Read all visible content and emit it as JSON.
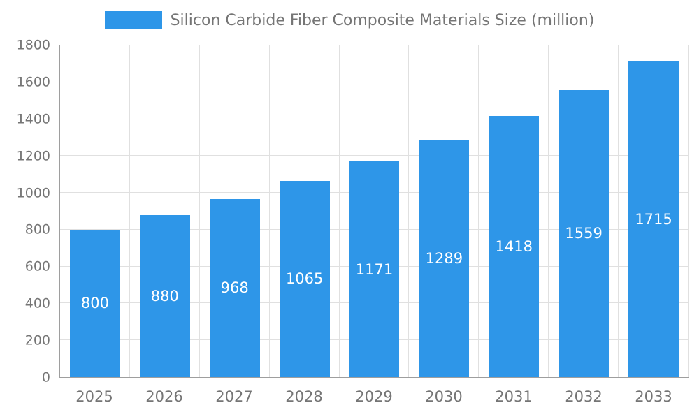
{
  "chart_data": {
    "type": "bar",
    "title": "Silicon Carbide Fiber Composite Materials Size (million)",
    "categories": [
      "2025",
      "2026",
      "2027",
      "2028",
      "2029",
      "2030",
      "2031",
      "2032",
      "2033"
    ],
    "values": [
      800,
      880,
      968,
      1065,
      1171,
      1289,
      1418,
      1559,
      1715
    ],
    "xlabel": "",
    "ylabel": "",
    "ylim": [
      0,
      1800
    ],
    "ytick_step": 200,
    "grid": true,
    "legend_position": "top",
    "bar_color": "#2E96E8",
    "value_label_color": "#ffffff",
    "axis_text_color": "#757575",
    "grid_color": "#e0e0e0",
    "axis_line_color": "#9e9e9e"
  }
}
